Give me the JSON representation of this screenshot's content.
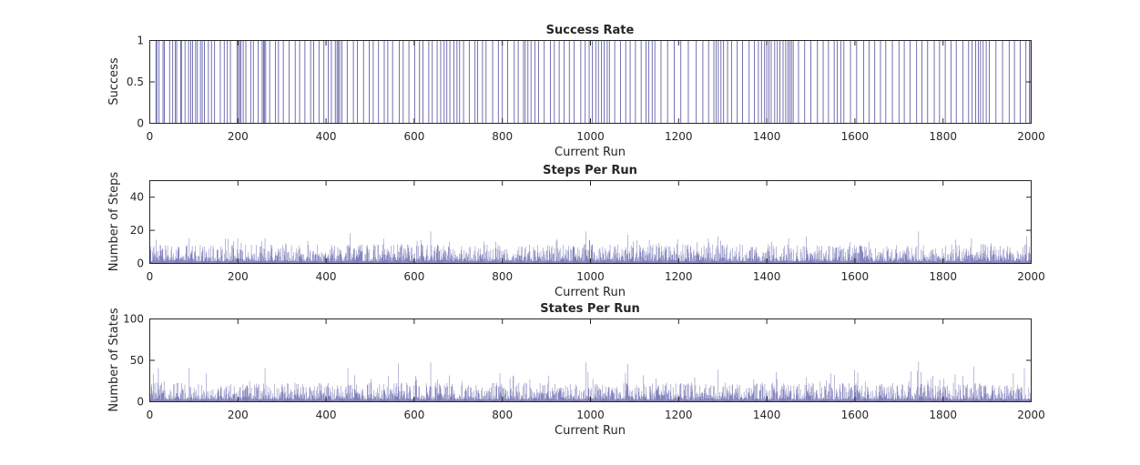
{
  "chart_data": [
    {
      "type": "bar",
      "title": "Success Rate",
      "xlabel": "Current Run",
      "ylabel": "Success",
      "xlim": [
        0,
        2000
      ],
      "ylim": [
        0,
        1
      ],
      "xticks": [
        "0",
        "200",
        "400",
        "600",
        "800",
        "1000",
        "1200",
        "1400",
        "1600",
        "1800",
        "2000"
      ],
      "yticks": [
        "0",
        "0.5",
        "1"
      ],
      "color": "#2e2e8f",
      "grid": false,
      "series": [
        {
          "x_start": 1,
          "x_step": 1,
          "success_runs": [
            14,
            16,
            21,
            30,
            33,
            45,
            52,
            58,
            61,
            70,
            72,
            80,
            88,
            93,
            97,
            104,
            108,
            115,
            119,
            124,
            133,
            140,
            147,
            160,
            169,
            176,
            183,
            198,
            201,
            204,
            207,
            212,
            218,
            229,
            235,
            246,
            255,
            258,
            260,
            263,
            272,
            285,
            292,
            303,
            316,
            330,
            340,
            352,
            365,
            372,
            384,
            395,
            405,
            412,
            421,
            425,
            428,
            431,
            436,
            448,
            462,
            471,
            485,
            498,
            507,
            519,
            532,
            540,
            551,
            566,
            575,
            588,
            601,
            612,
            620,
            633,
            641,
            652,
            660,
            668,
            674,
            681,
            690,
            697,
            703,
            712,
            725,
            738,
            744,
            755,
            763,
            778,
            791,
            800,
            812,
            827,
            836,
            848,
            852,
            858,
            865,
            874,
            882,
            895,
            909,
            918,
            929,
            940,
            952,
            963,
            978,
            988,
            997,
            1004,
            1012,
            1018,
            1025,
            1031,
            1038,
            1043,
            1055,
            1068,
            1080,
            1090,
            1102,
            1115,
            1126,
            1132,
            1140,
            1146,
            1160,
            1175,
            1190,
            1205,
            1222,
            1240,
            1255,
            1268,
            1280,
            1285,
            1290,
            1296,
            1302,
            1311,
            1320,
            1333,
            1345,
            1360,
            1372,
            1381,
            1388,
            1395,
            1400,
            1405,
            1410,
            1418,
            1424,
            1430,
            1437,
            1443,
            1448,
            1452,
            1456,
            1460,
            1472,
            1486,
            1500,
            1515,
            1528,
            1540,
            1553,
            1560,
            1568,
            1575,
            1590,
            1604,
            1620,
            1632,
            1645,
            1658,
            1670,
            1685,
            1700,
            1712,
            1725,
            1740,
            1752,
            1765,
            1780,
            1792,
            1805,
            1818,
            1830,
            1845,
            1858,
            1866,
            1874,
            1880,
            1885,
            1891,
            1898,
            1905,
            1920,
            1935,
            1950,
            1962,
            1975,
            1988,
            1996,
            1999
          ]
        }
      ]
    },
    {
      "type": "bar",
      "title": "Steps Per Run",
      "xlabel": "Current Run",
      "ylabel": "Number of Steps",
      "xlim": [
        0,
        2000
      ],
      "ylim": [
        0,
        50
      ],
      "xticks": [
        "0",
        "200",
        "400",
        "600",
        "800",
        "1000",
        "1200",
        "1400",
        "1600",
        "1800",
        "2000"
      ],
      "yticks": [
        "0",
        "20",
        "40"
      ],
      "color": "#2e2e8f",
      "grid": false,
      "series": [
        {
          "n": 2000,
          "typical_range": [
            1,
            10
          ],
          "max": 19,
          "peaks": [
            [
              15,
              14
            ],
            [
              90,
              15
            ],
            [
              262,
              15
            ],
            [
              455,
              18
            ],
            [
              638,
              19
            ],
            [
              990,
              19
            ],
            [
              1085,
              17
            ],
            [
              1290,
              16
            ],
            [
              1490,
              16
            ],
            [
              1745,
              19
            ],
            [
              1865,
              15
            ],
            [
              1990,
              16
            ]
          ]
        }
      ]
    },
    {
      "type": "bar",
      "title": "States Per Run",
      "xlabel": "Current Run",
      "ylabel": "Number of States",
      "xlim": [
        0,
        2000
      ],
      "ylim": [
        0,
        100
      ],
      "xticks": [
        "0",
        "200",
        "400",
        "600",
        "800",
        "1000",
        "1200",
        "1400",
        "1600",
        "1800",
        "2000"
      ],
      "yticks": [
        "0",
        "50",
        "100"
      ],
      "color": "#2e2e8f",
      "grid": false,
      "series": [
        {
          "n": 2000,
          "typical_range": [
            2,
            20
          ],
          "max": 48,
          "peaks": [
            [
              20,
              40
            ],
            [
              90,
              40
            ],
            [
              262,
              40
            ],
            [
              450,
              40
            ],
            [
              565,
              46
            ],
            [
              638,
              47
            ],
            [
              990,
              47
            ],
            [
              1085,
              45
            ],
            [
              1290,
              38
            ],
            [
              1600,
              38
            ],
            [
              1745,
              48
            ],
            [
              1870,
              42
            ],
            [
              1985,
              40
            ]
          ]
        }
      ]
    }
  ]
}
